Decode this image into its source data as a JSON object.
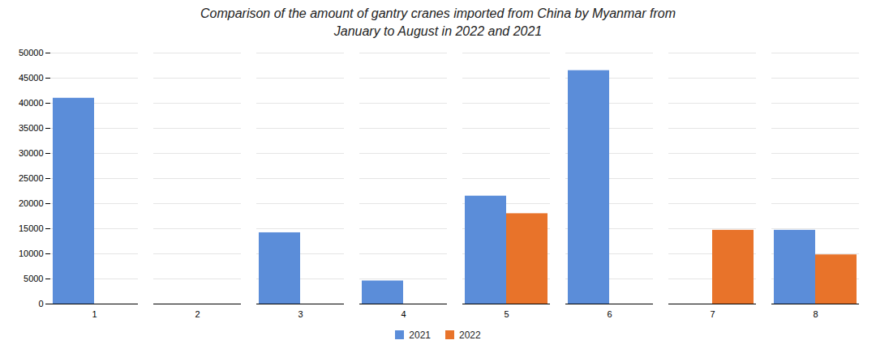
{
  "chart_data": {
    "type": "bar",
    "title": "Comparison of the amount of gantry cranes imported from China by Myanmar from\nJanuary to August in 2022 and 2021",
    "categories": [
      "1",
      "2",
      "3",
      "4",
      "5",
      "6",
      "7",
      "8"
    ],
    "series": [
      {
        "name": "2021",
        "color": "#5B8DD9",
        "values": [
          41000,
          0,
          14200,
          4600,
          21500,
          46500,
          0,
          14700
        ]
      },
      {
        "name": "2022",
        "color": "#E8732A",
        "values": [
          0,
          0,
          0,
          0,
          18000,
          0,
          14700,
          9800
        ]
      }
    ],
    "ylim": [
      0,
      50000
    ],
    "yticks": [
      0,
      5000,
      10000,
      15000,
      20000,
      25000,
      30000,
      35000,
      40000,
      45000,
      50000
    ],
    "grid": true,
    "legend": "bottom"
  }
}
